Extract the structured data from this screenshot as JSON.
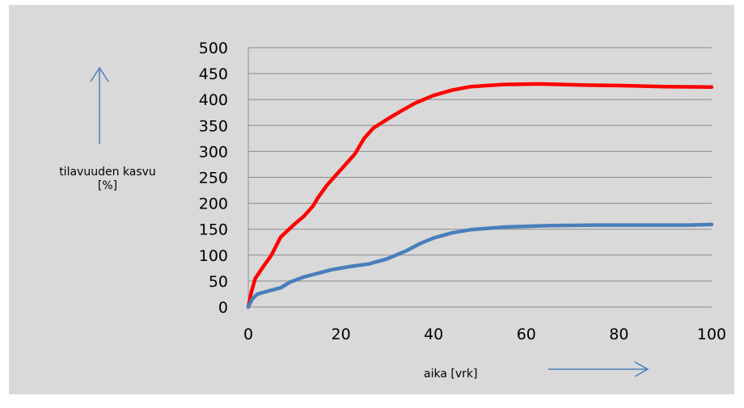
{
  "chart_data": {
    "type": "line",
    "title": "",
    "xlabel": "aika [vrk]",
    "ylabel": "tilavuuden kasvu\n[%]",
    "xlim": [
      0,
      100
    ],
    "ylim": [
      0,
      500
    ],
    "xticks": [
      0,
      20,
      40,
      60,
      80,
      100
    ],
    "yticks": [
      0,
      50,
      100,
      150,
      200,
      250,
      300,
      350,
      400,
      450,
      500
    ],
    "grid": "horizontal",
    "legend": "none",
    "series": [
      {
        "color": "#ff0000",
        "points": [
          [
            0,
            0
          ],
          [
            0.7,
            30
          ],
          [
            1.5,
            55
          ],
          [
            3,
            75
          ],
          [
            5,
            100
          ],
          [
            7,
            135
          ],
          [
            10,
            160
          ],
          [
            12,
            175
          ],
          [
            14,
            195
          ],
          [
            15,
            210
          ],
          [
            17,
            235
          ],
          [
            20,
            265
          ],
          [
            23,
            295
          ],
          [
            25,
            325
          ],
          [
            27,
            345
          ],
          [
            30,
            362
          ],
          [
            33,
            378
          ],
          [
            36,
            393
          ],
          [
            40,
            408
          ],
          [
            44,
            418
          ],
          [
            48,
            425
          ],
          [
            55,
            429
          ],
          [
            63,
            430
          ],
          [
            72,
            428
          ],
          [
            80,
            427
          ],
          [
            90,
            425
          ],
          [
            100,
            424
          ]
        ]
      },
      {
        "color": "#4a7ebb",
        "points": [
          [
            0,
            0
          ],
          [
            0.8,
            15
          ],
          [
            2,
            25
          ],
          [
            4,
            30
          ],
          [
            7,
            37
          ],
          [
            9,
            48
          ],
          [
            12,
            58
          ],
          [
            15,
            65
          ],
          [
            18,
            72
          ],
          [
            22,
            78
          ],
          [
            26,
            83
          ],
          [
            30,
            93
          ],
          [
            34,
            108
          ],
          [
            37,
            122
          ],
          [
            40,
            133
          ],
          [
            44,
            143
          ],
          [
            48,
            149
          ],
          [
            55,
            154
          ],
          [
            65,
            157
          ],
          [
            75,
            158
          ],
          [
            85,
            158
          ],
          [
            95,
            158
          ],
          [
            100,
            159
          ]
        ]
      }
    ]
  },
  "annotations": {
    "up_arrow_color": "#4a7ebb",
    "right_arrow_color": "#4a7ebb"
  }
}
